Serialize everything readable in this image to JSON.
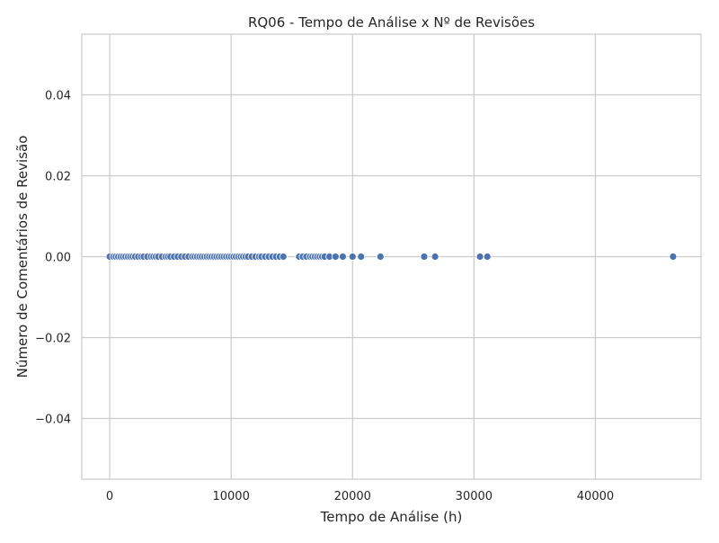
{
  "chart_data": {
    "type": "scatter",
    "title": "RQ06 - Tempo de Análise x Nº de Revisões",
    "xlabel": "Tempo de Análise (h)",
    "ylabel": "Número de Comentários de Revisão",
    "xlim": [
      -2300,
      48700
    ],
    "ylim": [
      -0.055,
      0.055
    ],
    "x_ticks": [
      0,
      10000,
      20000,
      30000,
      40000
    ],
    "x_tick_labels": [
      "0",
      "10000",
      "20000",
      "30000",
      "40000"
    ],
    "y_ticks": [
      -0.04,
      -0.02,
      0.0,
      0.02,
      0.04
    ],
    "y_tick_labels": [
      "−0.04",
      "−0.02",
      "0.00",
      "0.02",
      "0.04"
    ],
    "grid": true,
    "point_color": "#4c72b0",
    "points": [
      {
        "x": 0,
        "y": 0
      },
      {
        "x": 300,
        "y": 0
      },
      {
        "x": 500,
        "y": 0
      },
      {
        "x": 700,
        "y": 0
      },
      {
        "x": 900,
        "y": 0
      },
      {
        "x": 1100,
        "y": 0
      },
      {
        "x": 1300,
        "y": 0
      },
      {
        "x": 1500,
        "y": 0
      },
      {
        "x": 1700,
        "y": 0
      },
      {
        "x": 1900,
        "y": 0
      },
      {
        "x": 2100,
        "y": 0
      },
      {
        "x": 2350,
        "y": 0
      },
      {
        "x": 2600,
        "y": 0
      },
      {
        "x": 2800,
        "y": 0
      },
      {
        "x": 3100,
        "y": 0
      },
      {
        "x": 3400,
        "y": 0
      },
      {
        "x": 3600,
        "y": 0
      },
      {
        "x": 3800,
        "y": 0
      },
      {
        "x": 4000,
        "y": 0
      },
      {
        "x": 4300,
        "y": 0
      },
      {
        "x": 4600,
        "y": 0
      },
      {
        "x": 4800,
        "y": 0
      },
      {
        "x": 5000,
        "y": 0
      },
      {
        "x": 5300,
        "y": 0
      },
      {
        "x": 5600,
        "y": 0
      },
      {
        "x": 5900,
        "y": 0
      },
      {
        "x": 6200,
        "y": 0
      },
      {
        "x": 6500,
        "y": 0
      },
      {
        "x": 6800,
        "y": 0
      },
      {
        "x": 7000,
        "y": 0
      },
      {
        "x": 7200,
        "y": 0
      },
      {
        "x": 7400,
        "y": 0
      },
      {
        "x": 7600,
        "y": 0
      },
      {
        "x": 7800,
        "y": 0
      },
      {
        "x": 8000,
        "y": 0
      },
      {
        "x": 8200,
        "y": 0
      },
      {
        "x": 8400,
        "y": 0
      },
      {
        "x": 8600,
        "y": 0
      },
      {
        "x": 8800,
        "y": 0
      },
      {
        "x": 9000,
        "y": 0
      },
      {
        "x": 9200,
        "y": 0
      },
      {
        "x": 9400,
        "y": 0
      },
      {
        "x": 9600,
        "y": 0
      },
      {
        "x": 9800,
        "y": 0
      },
      {
        "x": 10000,
        "y": 0
      },
      {
        "x": 10200,
        "y": 0
      },
      {
        "x": 10400,
        "y": 0
      },
      {
        "x": 10600,
        "y": 0
      },
      {
        "x": 10800,
        "y": 0
      },
      {
        "x": 11000,
        "y": 0
      },
      {
        "x": 11200,
        "y": 0
      },
      {
        "x": 11400,
        "y": 0
      },
      {
        "x": 11700,
        "y": 0
      },
      {
        "x": 12000,
        "y": 0
      },
      {
        "x": 12300,
        "y": 0
      },
      {
        "x": 12500,
        "y": 0
      },
      {
        "x": 12800,
        "y": 0
      },
      {
        "x": 13100,
        "y": 0
      },
      {
        "x": 13400,
        "y": 0
      },
      {
        "x": 13700,
        "y": 0
      },
      {
        "x": 14000,
        "y": 0
      },
      {
        "x": 14300,
        "y": 0
      },
      {
        "x": 15600,
        "y": 0
      },
      {
        "x": 15900,
        "y": 0
      },
      {
        "x": 16200,
        "y": 0
      },
      {
        "x": 16500,
        "y": 0
      },
      {
        "x": 16700,
        "y": 0
      },
      {
        "x": 16900,
        "y": 0
      },
      {
        "x": 17100,
        "y": 0
      },
      {
        "x": 17300,
        "y": 0
      },
      {
        "x": 17500,
        "y": 0
      },
      {
        "x": 17700,
        "y": 0
      },
      {
        "x": 18100,
        "y": 0
      },
      {
        "x": 18600,
        "y": 0
      },
      {
        "x": 19200,
        "y": 0
      },
      {
        "x": 20000,
        "y": 0
      },
      {
        "x": 20700,
        "y": 0
      },
      {
        "x": 22300,
        "y": 0
      },
      {
        "x": 25900,
        "y": 0
      },
      {
        "x": 26800,
        "y": 0
      },
      {
        "x": 30500,
        "y": 0
      },
      {
        "x": 31100,
        "y": 0
      },
      {
        "x": 46400,
        "y": 0
      }
    ]
  }
}
